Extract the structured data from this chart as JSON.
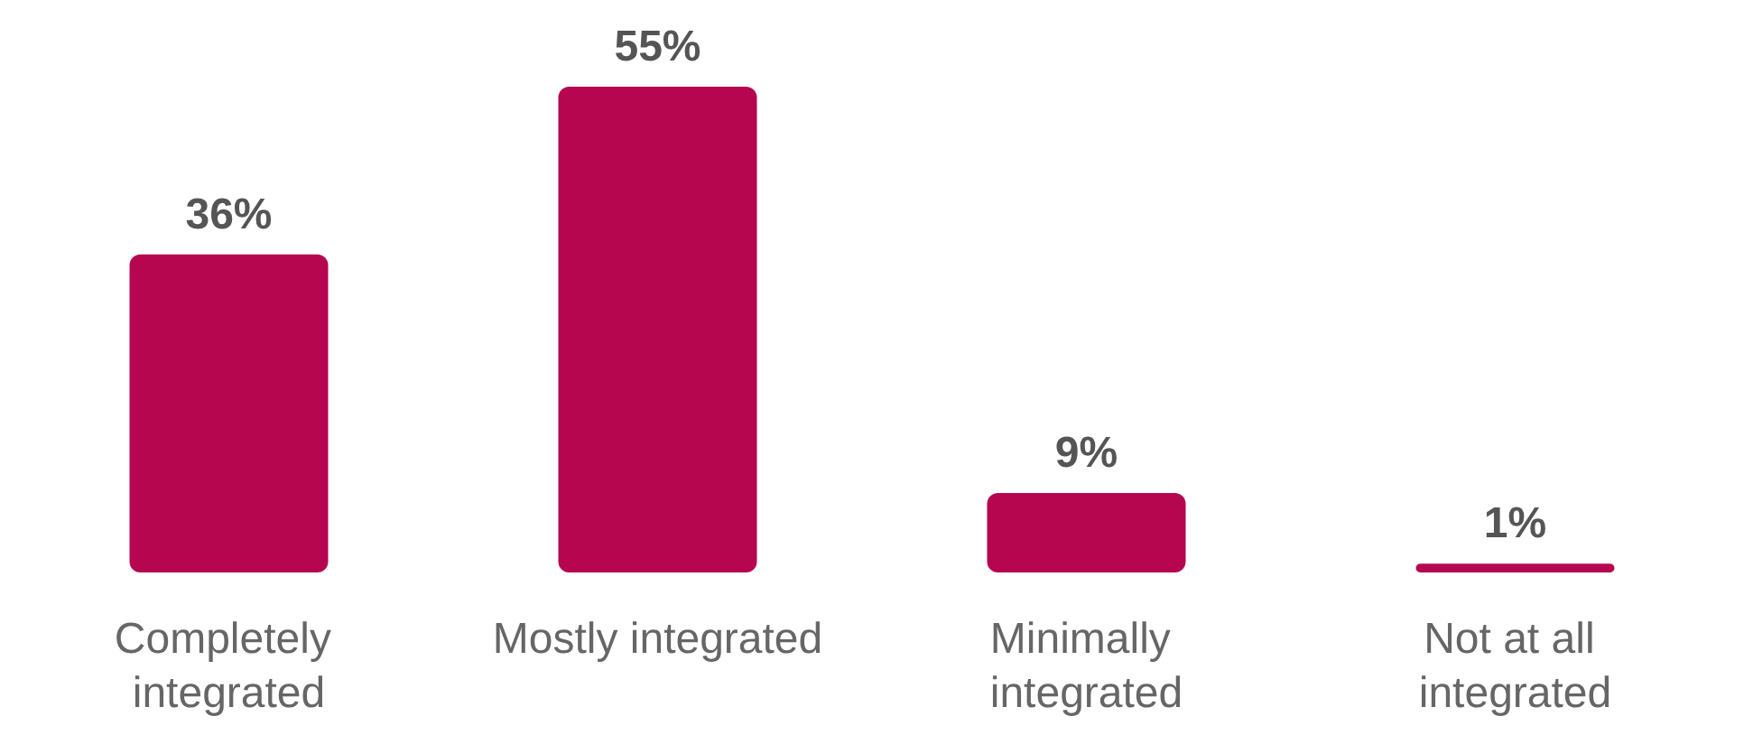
{
  "chart_data": {
    "type": "bar",
    "categories": [
      "Completely integrated",
      "Mostly integrated",
      "Minimally integrated",
      "Not at all integrated"
    ],
    "values": [
      36,
      55,
      9,
      1
    ],
    "value_labels": [
      "36%",
      "55%",
      "9%",
      "1%"
    ],
    "color": "#b5064f"
  }
}
